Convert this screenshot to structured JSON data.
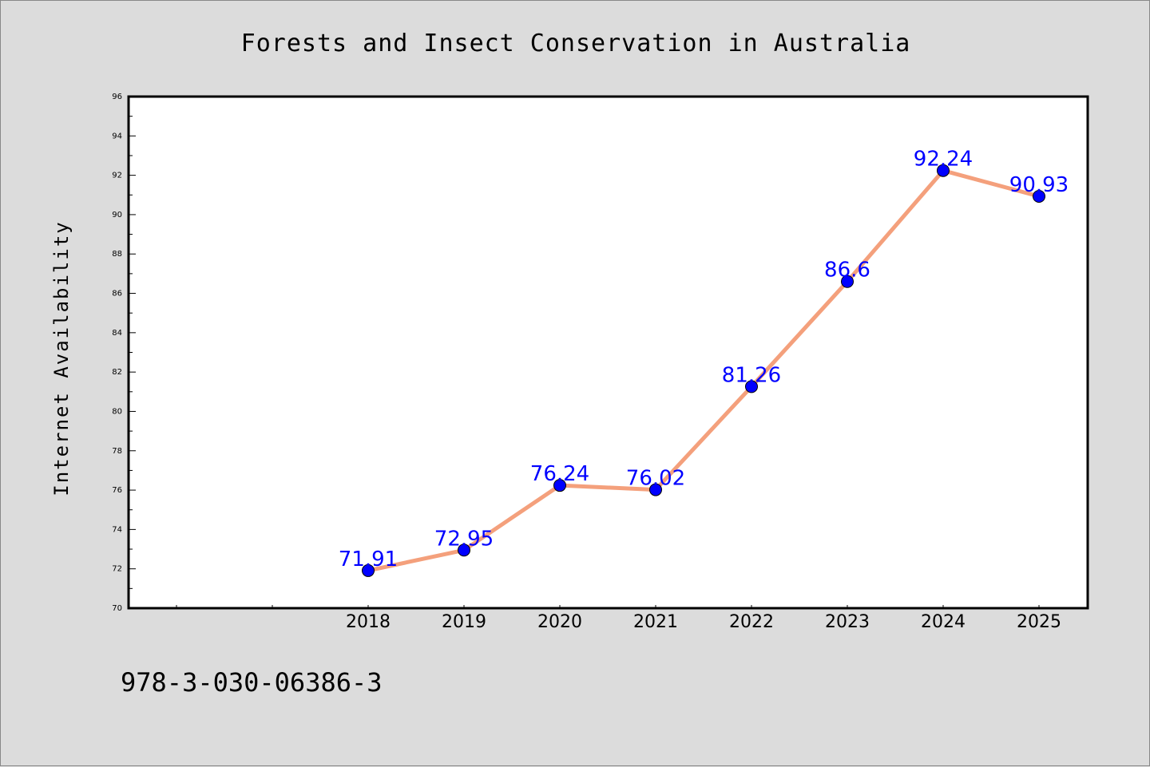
{
  "chart_data": {
    "type": "line",
    "title": "Forests and Insect Conservation in Australia",
    "xlabel": "",
    "ylabel": "Internet Availability",
    "x": [
      "2018",
      "2019",
      "2020",
      "2021",
      "2022",
      "2023",
      "2024",
      "2025"
    ],
    "values": [
      71.91,
      72.95,
      76.24,
      76.02,
      81.26,
      86.6,
      92.24,
      90.93
    ],
    "data_labels": [
      "71.91",
      "72.95",
      "76.24",
      "76.02",
      "81.26",
      "86.6",
      "92.24",
      "90.93"
    ],
    "ylim": [
      70,
      96
    ],
    "yticks": [
      70,
      72,
      74,
      76,
      78,
      80,
      82,
      84,
      86,
      88,
      90,
      92,
      94,
      96
    ],
    "grid": false,
    "legend": "none",
    "line_color": "#f4a07c",
    "marker_color": "#0000ff",
    "label_color": "#0000ff"
  },
  "footer_text": "978-3-030-06386-3"
}
